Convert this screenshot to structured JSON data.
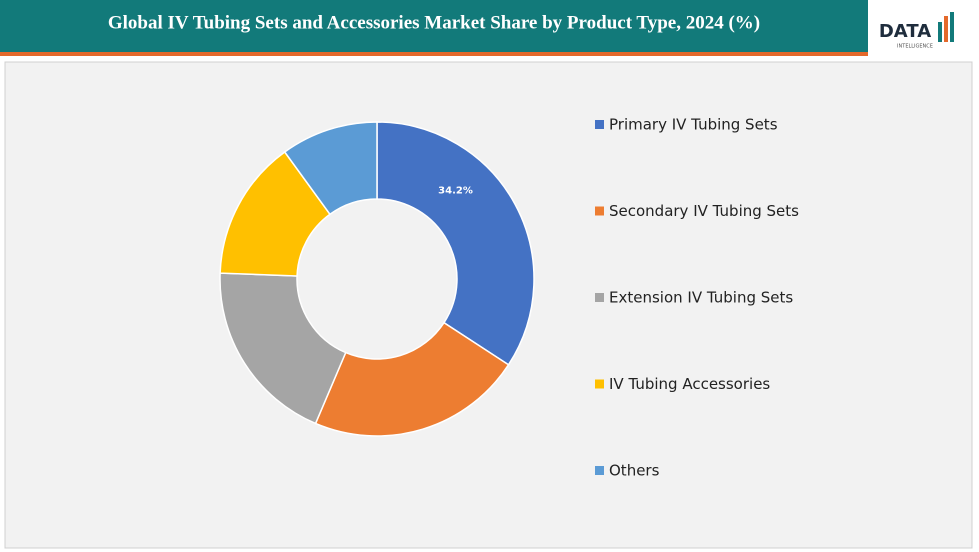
{
  "chart_data": {
    "type": "donut",
    "title": "Global IV Tubing Sets and Accessories Market Share by Product Type, 2024 (%)",
    "categories": [
      "Primary IV Tubing Sets",
      "Secondary IV Tubing Sets",
      "Extension IV Tubing Sets",
      "IV Tubing Accessories",
      "Others"
    ],
    "values": [
      34.2,
      22.2,
      19.2,
      14.4,
      10.0
    ],
    "value_labels": [
      "34.2%",
      null,
      null,
      null,
      null
    ],
    "colors": [
      "#4472c4",
      "#ed7d31",
      "#a5a5a5",
      "#ffc000",
      "#5b9bd5"
    ],
    "legend": "right"
  },
  "logo": {
    "name": "DATA",
    "tagline": "INTELLIGENCE"
  }
}
